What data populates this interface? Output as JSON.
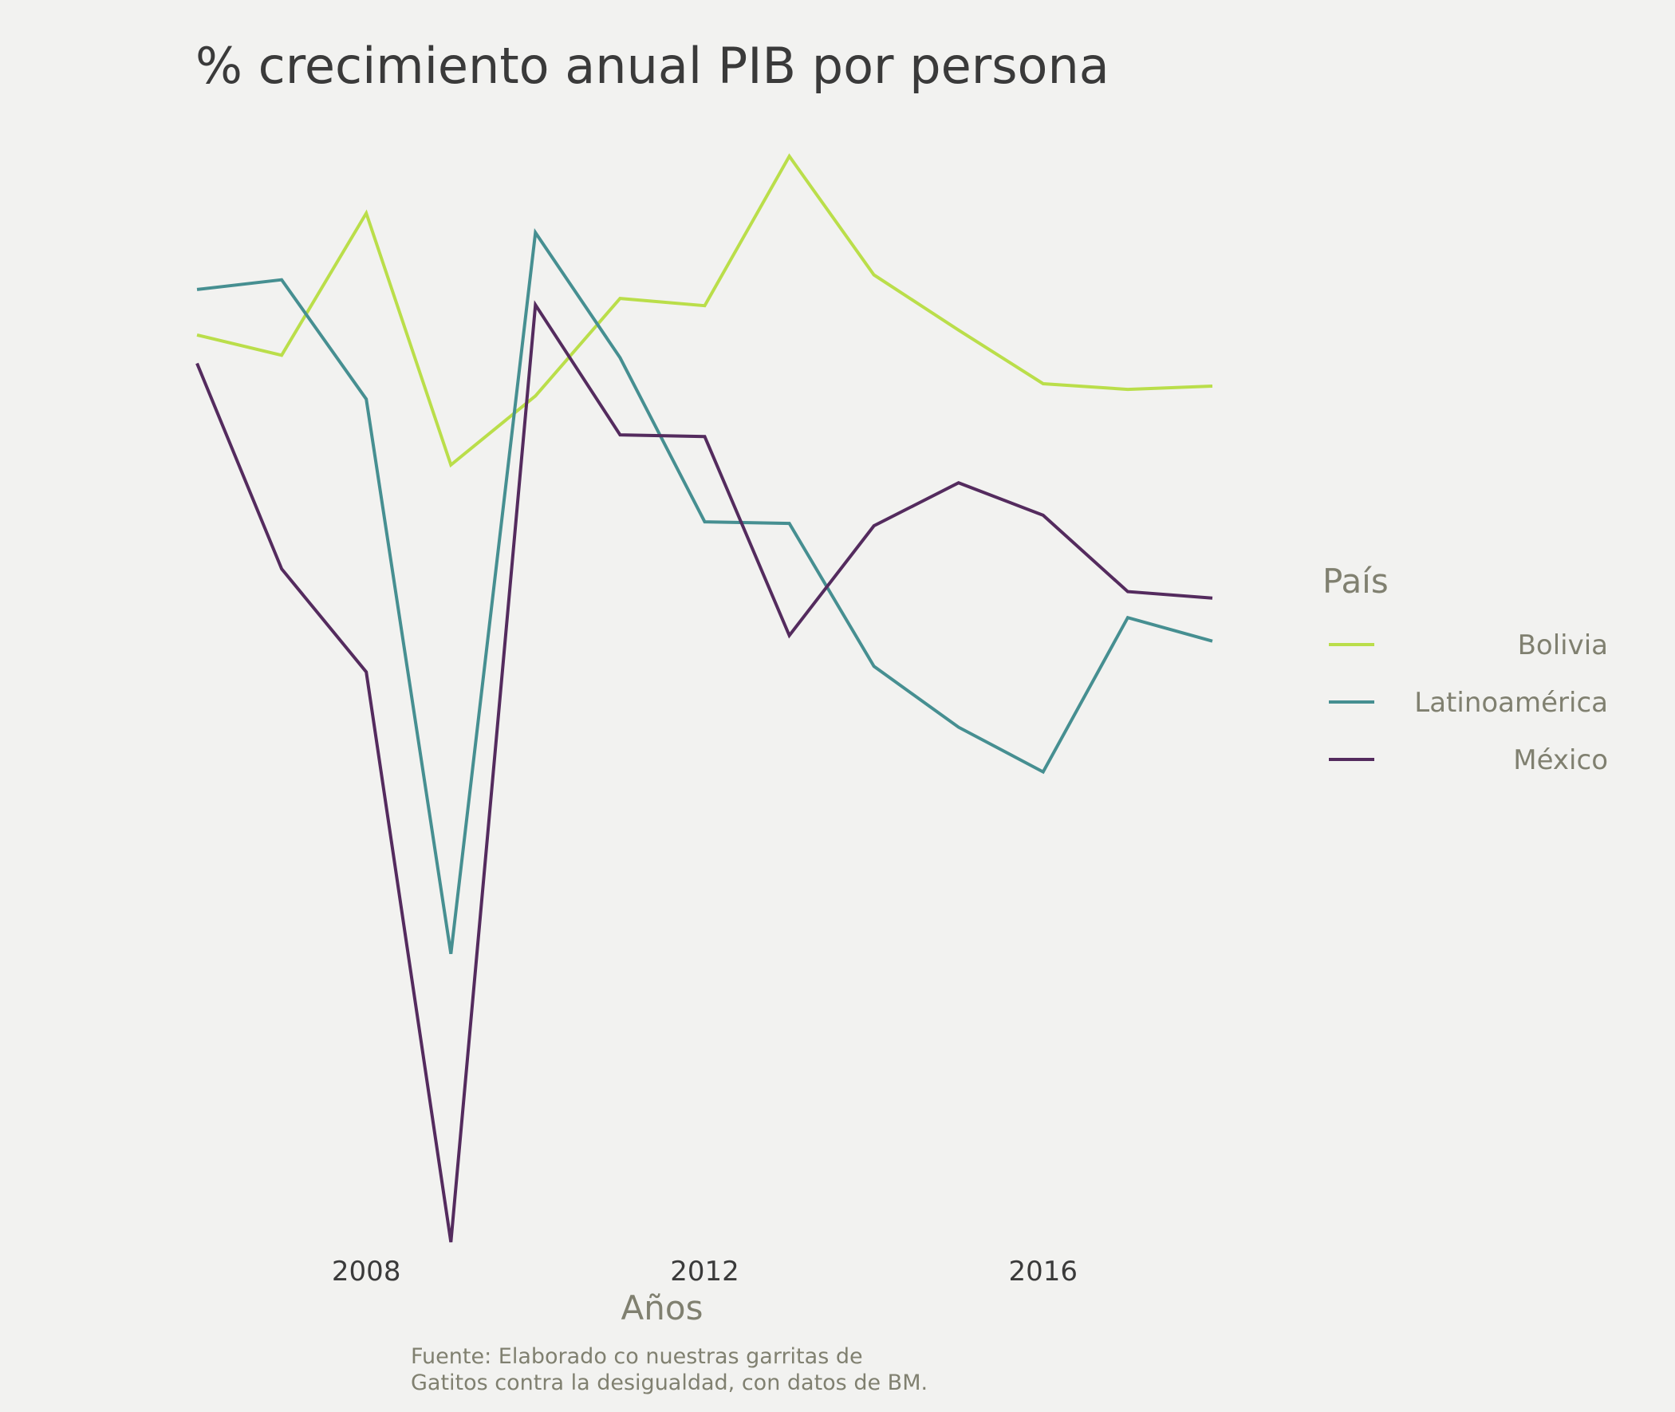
{
  "chart_data": {
    "type": "line",
    "title": "% crecimiento anual PIB por persona",
    "xlabel": "Años",
    "ylabel": "",
    "caption": [
      "Fuente: Elaborado co nuestras garritas de",
      "Gatitos contra la desigualdad, con datos de BM."
    ],
    "x": [
      2006,
      2007,
      2008,
      2009,
      2010,
      2011,
      2012,
      2013,
      2014,
      2015,
      2016,
      2017,
      2018
    ],
    "xticks": [
      2008,
      2012,
      2016
    ],
    "xlim": [
      2006,
      2018
    ],
    "ylim": [
      -7.8,
      6.0
    ],
    "grid": false,
    "y_axis_labels_shown": false,
    "legend": {
      "title": "País",
      "position": "right"
    },
    "series": [
      {
        "name": "Bolivia",
        "color": "#bade4a",
        "values": [
          3.3,
          3.05,
          4.8,
          1.7,
          2.55,
          3.75,
          3.66,
          5.5,
          4.04,
          3.36,
          2.7,
          2.63,
          2.67
        ]
      },
      {
        "name": "Latinoamérica",
        "color": "#468f91",
        "values": [
          3.86,
          3.98,
          2.51,
          -4.32,
          4.56,
          3.02,
          1.0,
          0.98,
          -0.78,
          -1.53,
          -2.08,
          -0.18,
          -0.47
        ]
      },
      {
        "name": "México",
        "color": "#542b5e",
        "values": [
          2.95,
          0.42,
          -0.85,
          -7.87,
          3.67,
          2.07,
          2.05,
          -0.4,
          0.95,
          1.48,
          1.08,
          0.14,
          0.06
        ]
      }
    ]
  }
}
